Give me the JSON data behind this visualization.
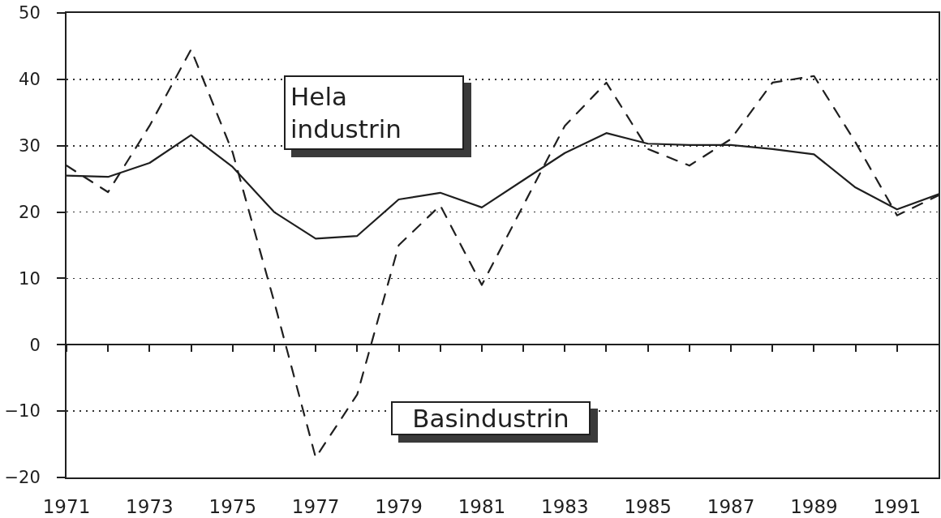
{
  "chart_data": {
    "type": "line",
    "x": [
      1971,
      1972,
      1973,
      1974,
      1975,
      1976,
      1977,
      1978,
      1979,
      1980,
      1981,
      1982,
      1983,
      1984,
      1985,
      1986,
      1987,
      1988,
      1989,
      1990,
      1991,
      1992
    ],
    "series": [
      {
        "name": "Hela industrin",
        "color": "#1f1f1f",
        "line_style": "solid",
        "values": [
          25.5,
          25.3,
          27.4,
          31.6,
          26.8,
          20.0,
          16.0,
          16.4,
          21.9,
          22.9,
          20.7,
          24.8,
          28.9,
          31.9,
          30.3,
          30.1,
          30.1,
          29.5,
          28.7,
          23.7,
          20.4,
          22.7
        ]
      },
      {
        "name": "Basindustrin",
        "color": "#1f1f1f",
        "line_style": "dashed",
        "values": [
          27,
          23,
          33,
          44.5,
          29,
          6.5,
          -17,
          -7.5,
          15,
          21,
          9,
          21,
          33,
          39.5,
          29.5,
          27,
          31,
          39.5,
          40.5,
          30.5,
          19.5,
          22.5
        ]
      }
    ],
    "xlim": [
      1971,
      1992
    ],
    "xticks": [
      1971,
      {
        "value": 1972,
        "label": null
      },
      1973,
      {
        "value": 1974,
        "label": null
      },
      1975,
      {
        "value": 1976,
        "label": null
      },
      1977,
      {
        "value": 1978,
        "label": null
      },
      1979,
      {
        "value": 1980,
        "label": null
      },
      1981,
      {
        "value": 1982,
        "label": null
      },
      1983,
      {
        "value": 1984,
        "label": null
      },
      1985,
      {
        "value": 1986,
        "label": null
      },
      1987,
      {
        "value": 1988,
        "label": null
      },
      1989,
      {
        "value": 1990,
        "label": null
      },
      1991
    ],
    "ylim": [
      -20,
      50
    ],
    "yticks": [
      -20,
      -10,
      0,
      10,
      20,
      30,
      40,
      50
    ],
    "grid": "y"
  }
}
